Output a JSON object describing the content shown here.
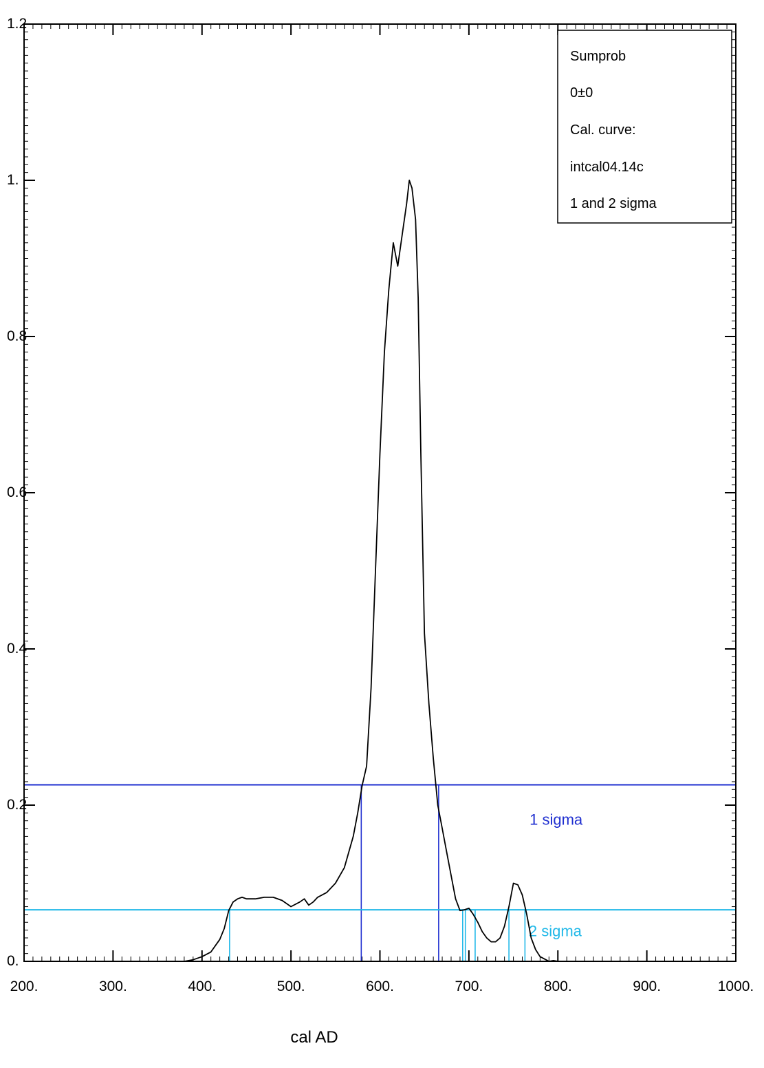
{
  "chart_data": {
    "type": "line",
    "xlabel": "cal AD",
    "ylabel": "",
    "xlim": [
      200,
      1000
    ],
    "ylim": [
      0,
      1.2
    ],
    "x_tick_labels": [
      "200.",
      "300.",
      "400.",
      "500.",
      "600.",
      "700.",
      "800.",
      "900.",
      "1000."
    ],
    "x_tick_values": [
      200,
      300,
      400,
      500,
      600,
      700,
      800,
      900,
      1000
    ],
    "y_tick_labels": [
      "0.",
      "0.2",
      "0.4",
      "0.6",
      "0.8",
      "1.",
      "1.2"
    ],
    "y_tick_values": [
      0,
      0.2,
      0.4,
      0.6,
      0.8,
      1.0,
      1.2
    ],
    "legend": {
      "placement": "top-right",
      "lines": [
        "Sumprob",
        "0±0",
        "Cal. curve:",
        "intcal04.14c",
        "1 and 2 sigma"
      ]
    },
    "series": [
      {
        "name": "Sumprob",
        "color": "#000000",
        "x": [
          380,
          390,
          400,
          410,
          420,
          425,
          430,
          435,
          440,
          445,
          450,
          460,
          470,
          480,
          490,
          500,
          510,
          515,
          520,
          525,
          530,
          540,
          550,
          560,
          570,
          575,
          580,
          585,
          590,
          595,
          600,
          605,
          610,
          615,
          620,
          625,
          630,
          633,
          636,
          640,
          643,
          646,
          650,
          655,
          660,
          665,
          670,
          675,
          680,
          685,
          690,
          695,
          700,
          705,
          710,
          715,
          720,
          725,
          730,
          735,
          740,
          745,
          750,
          755,
          760,
          765,
          770,
          775,
          780,
          785,
          790,
          795,
          800
        ],
        "y": [
          0.0,
          0.002,
          0.006,
          0.012,
          0.028,
          0.042,
          0.065,
          0.076,
          0.08,
          0.082,
          0.08,
          0.08,
          0.082,
          0.082,
          0.078,
          0.07,
          0.076,
          0.08,
          0.072,
          0.076,
          0.082,
          0.088,
          0.1,
          0.12,
          0.16,
          0.19,
          0.225,
          0.25,
          0.35,
          0.5,
          0.65,
          0.78,
          0.86,
          0.92,
          0.89,
          0.93,
          0.97,
          1.0,
          0.99,
          0.95,
          0.85,
          0.65,
          0.42,
          0.33,
          0.26,
          0.2,
          0.17,
          0.14,
          0.11,
          0.08,
          0.065,
          0.066,
          0.068,
          0.06,
          0.05,
          0.038,
          0.03,
          0.025,
          0.025,
          0.03,
          0.045,
          0.07,
          0.1,
          0.098,
          0.085,
          0.06,
          0.03,
          0.015,
          0.006,
          0.003,
          0.0,
          0.001,
          0.0
        ]
      }
    ],
    "sigma_levels": [
      {
        "label": "1 sigma",
        "color": "#1f2fd0",
        "level": 0.226,
        "drop_lines_x": [
          579,
          666
        ]
      },
      {
        "label": "2 sigma",
        "color": "#20b8e8",
        "level": 0.066,
        "drop_lines_x": [
          431,
          693,
          696,
          707,
          745,
          763
        ]
      }
    ]
  }
}
